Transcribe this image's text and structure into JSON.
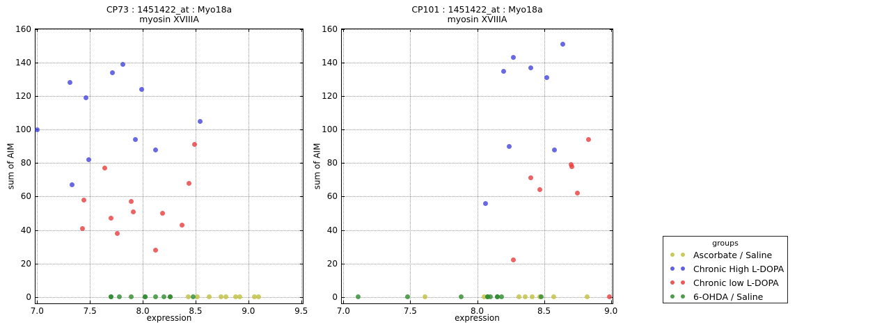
{
  "legend": {
    "title": "groups",
    "entries": [
      {
        "label": "Ascorbate / Saline",
        "color": "#bfbf3f"
      },
      {
        "label": "Chronic High L-DOPA",
        "color": "#4444dd"
      },
      {
        "label": "Chronic low L-DOPA",
        "color": "#e83c3c"
      },
      {
        "label": "6-OHDA / Saline",
        "color": "#2e8b2e"
      }
    ]
  },
  "chart_data": [
    {
      "type": "scatter",
      "title_line1": "CP73 : 1451422_at : Myo18a",
      "title_line2": "myosin XVIIIA",
      "xlabel": "expression",
      "ylabel": "sum of AIM",
      "xlim": [
        7.0,
        9.5
      ],
      "ylim": [
        0,
        160
      ],
      "xticks": [
        "7.0",
        "7.5",
        "8.0",
        "8.5",
        "9.0",
        "9.5"
      ],
      "yticks": [
        "0",
        "20",
        "40",
        "60",
        "80",
        "100",
        "120",
        "140",
        "160"
      ],
      "grid": true,
      "series": [
        {
          "name": "Ascorbate / Saline",
          "color": "#bfbf3f",
          "points": [
            [
              8.43,
              0
            ],
            [
              8.52,
              0
            ],
            [
              8.63,
              0
            ],
            [
              8.74,
              0
            ],
            [
              8.79,
              0
            ],
            [
              8.88,
              0
            ],
            [
              8.92,
              0
            ],
            [
              9.06,
              0
            ],
            [
              9.1,
              0
            ]
          ]
        },
        {
          "name": "Chronic High L-DOPA",
          "color": "#4444dd",
          "points": [
            [
              7.0,
              100
            ],
            [
              7.31,
              128
            ],
            [
              7.33,
              67
            ],
            [
              7.46,
              119
            ],
            [
              7.49,
              82
            ],
            [
              7.71,
              134
            ],
            [
              7.81,
              139
            ],
            [
              7.93,
              94
            ],
            [
              7.99,
              124
            ],
            [
              8.12,
              88
            ],
            [
              8.54,
              105
            ]
          ]
        },
        {
          "name": "Chronic low L-DOPA",
          "color": "#e83c3c",
          "points": [
            [
              7.43,
              41
            ],
            [
              7.44,
              58
            ],
            [
              7.64,
              77
            ],
            [
              7.7,
              47
            ],
            [
              7.76,
              38
            ],
            [
              7.89,
              57
            ],
            [
              7.91,
              51
            ],
            [
              8.12,
              28
            ],
            [
              8.19,
              50
            ],
            [
              8.37,
              43
            ],
            [
              8.44,
              68
            ],
            [
              8.49,
              91
            ]
          ]
        },
        {
          "name": "6-OHDA / Saline",
          "color": "#2e8b2e",
          "points": [
            [
              7.7,
              0
            ],
            [
              7.7,
              0
            ],
            [
              7.78,
              0
            ],
            [
              7.89,
              0
            ],
            [
              8.02,
              0
            ],
            [
              8.02,
              0
            ],
            [
              8.12,
              0
            ],
            [
              8.2,
              0
            ],
            [
              8.26,
              0
            ],
            [
              8.26,
              0
            ],
            [
              8.48,
              0
            ]
          ]
        }
      ]
    },
    {
      "type": "scatter",
      "title_line1": "CP101 : 1451422_at : Myo18a",
      "title_line2": "myosin XVIIIA",
      "xlabel": "expression",
      "ylabel": "sum of AIM",
      "xlim": [
        7.0,
        9.0
      ],
      "ylim": [
        0,
        160
      ],
      "xticks": [
        "7.0",
        "7.5",
        "8.0",
        "8.5",
        "9.0"
      ],
      "yticks": [
        "0",
        "20",
        "40",
        "60",
        "80",
        "100",
        "120",
        "140",
        "160"
      ],
      "grid": true,
      "series": [
        {
          "name": "Ascorbate / Saline",
          "color": "#bfbf3f",
          "points": [
            [
              7.61,
              0
            ],
            [
              8.05,
              0
            ],
            [
              8.31,
              0
            ],
            [
              8.36,
              0
            ],
            [
              8.41,
              0
            ],
            [
              8.47,
              0
            ],
            [
              8.57,
              0
            ],
            [
              8.82,
              0
            ]
          ]
        },
        {
          "name": "Chronic High L-DOPA",
          "color": "#4444dd",
          "points": [
            [
              8.06,
              56
            ],
            [
              8.2,
              135
            ],
            [
              8.24,
              90
            ],
            [
              8.27,
              143
            ],
            [
              8.4,
              137
            ],
            [
              8.52,
              131
            ],
            [
              8.58,
              88
            ],
            [
              8.64,
              151
            ]
          ]
        },
        {
          "name": "Chronic low L-DOPA",
          "color": "#e83c3c",
          "points": [
            [
              8.27,
              22
            ],
            [
              8.4,
              71
            ],
            [
              8.47,
              64
            ],
            [
              8.7,
              79
            ],
            [
              8.71,
              78
            ],
            [
              8.75,
              62
            ],
            [
              8.83,
              94
            ],
            [
              8.99,
              0
            ]
          ]
        },
        {
          "name": "6-OHDA / Saline",
          "color": "#2e8b2e",
          "points": [
            [
              7.11,
              0
            ],
            [
              7.48,
              0
            ],
            [
              7.88,
              0
            ],
            [
              8.08,
              0
            ],
            [
              8.08,
              0
            ],
            [
              8.1,
              0
            ],
            [
              8.15,
              0
            ],
            [
              8.15,
              0
            ],
            [
              8.18,
              0
            ],
            [
              8.48,
              0
            ]
          ]
        }
      ]
    }
  ]
}
